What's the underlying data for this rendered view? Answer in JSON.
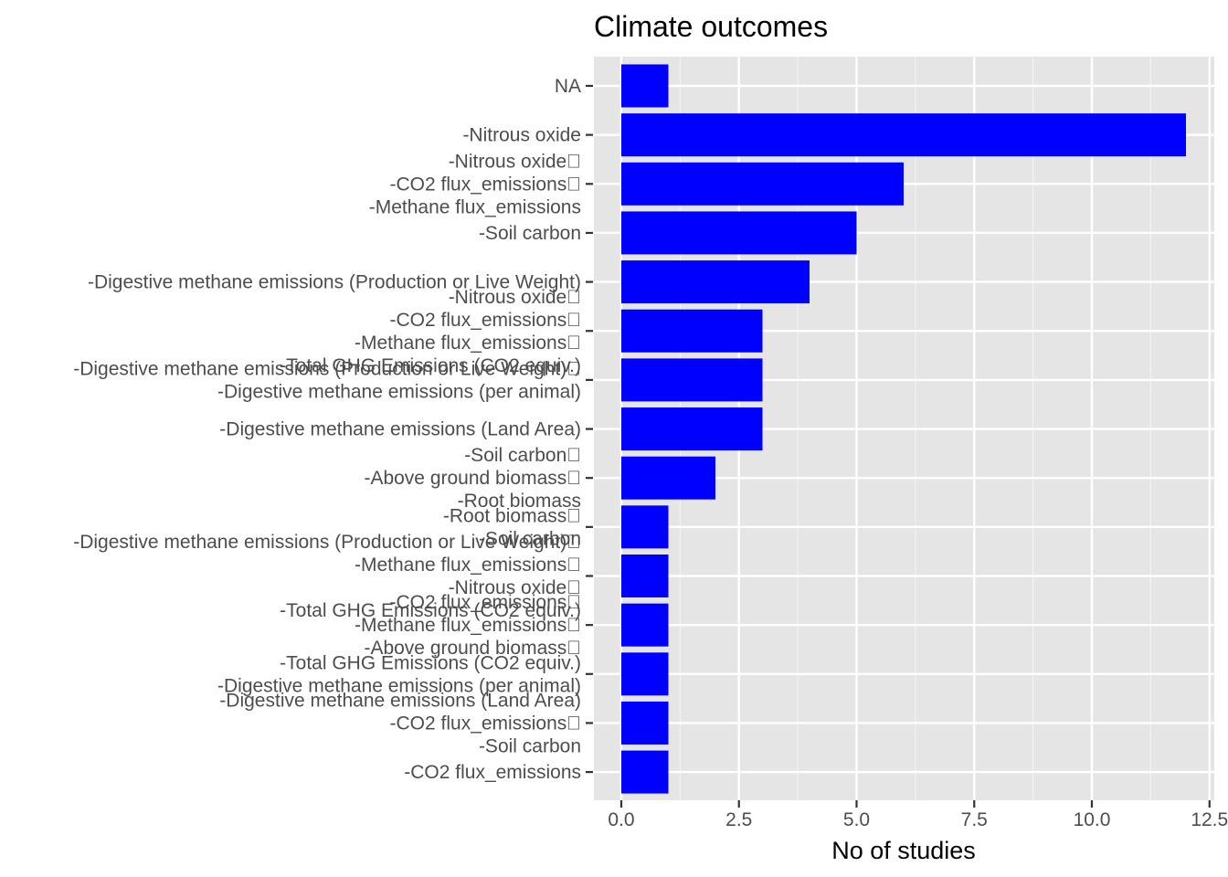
{
  "chart_data": {
    "type": "bar",
    "orientation": "horizontal",
    "title": "Climate outcomes",
    "xlabel": "No of studies",
    "ylabel": "",
    "xlim": [
      0,
      12.5
    ],
    "xticks": [
      "0.0",
      "2.5",
      "5.0",
      "7.5",
      "10.0",
      "12.5"
    ],
    "xtick_values": [
      0,
      2.5,
      5,
      7.5,
      10,
      12.5
    ],
    "grid": true,
    "bar_color": "#0000ff",
    "panel_color": "#e5e5e5",
    "grid_color": "#ffffff",
    "categories": [
      {
        "lines": [
          "NA"
        ],
        "value": 1
      },
      {
        "lines": [
          "-Nitrous oxide"
        ],
        "value": 12
      },
      {
        "lines": [
          "-Nitrous oxide\u0000",
          "-CO2 flux_emissions\u0000",
          "-Methane flux_emissions"
        ],
        "value": 6
      },
      {
        "lines": [
          "-Soil carbon"
        ],
        "value": 5
      },
      {
        "lines": [
          "-Digestive methane emissions (Production or Live Weight)"
        ],
        "value": 4
      },
      {
        "lines": [
          "-Nitrous oxide\u0000",
          "-CO2 flux_emissions\u0000",
          "-Methane flux_emissions\u0000",
          "-Total GHG Emissions (CO2 equiv.)"
        ],
        "value": 3
      },
      {
        "lines": [
          "-Digestive methane emissions (Production or Live Weight)\u0000",
          "-Digestive methane emissions (per animal)"
        ],
        "value": 3
      },
      {
        "lines": [
          "-Digestive methane emissions (Land Area)"
        ],
        "value": 3
      },
      {
        "lines": [
          "-Soil carbon\u0000",
          "-Above ground biomass\u0000",
          "-Root biomass"
        ],
        "value": 2
      },
      {
        "lines": [
          "-Root biomass\u0000",
          "-Soil carbon"
        ],
        "value": 1
      },
      {
        "lines": [
          "-Digestive methane emissions (Production or Live Weight)\u0000",
          "-Methane flux_emissions\u0000",
          "-Nitrous oxide\u0000",
          "-Total GHG Emissions (CO2 equiv.)"
        ],
        "value": 1
      },
      {
        "lines": [
          "-CO2 flux_emissions\u0000",
          "-Methane flux_emissions\u0000",
          "-Above ground biomass\u0000"
        ],
        "value": 1
      },
      {
        "lines": [
          "-Total GHG Emissions (CO2 equiv.)",
          "-Digestive methane emissions (per animal)"
        ],
        "value": 1
      },
      {
        "lines": [
          "-Digestive methane emissions (Land Area)",
          "-CO2 flux_emissions\u0000",
          "-Soil carbon"
        ],
        "value": 1
      },
      {
        "lines": [
          "-CO2 flux_emissions"
        ],
        "value": 1
      }
    ]
  }
}
